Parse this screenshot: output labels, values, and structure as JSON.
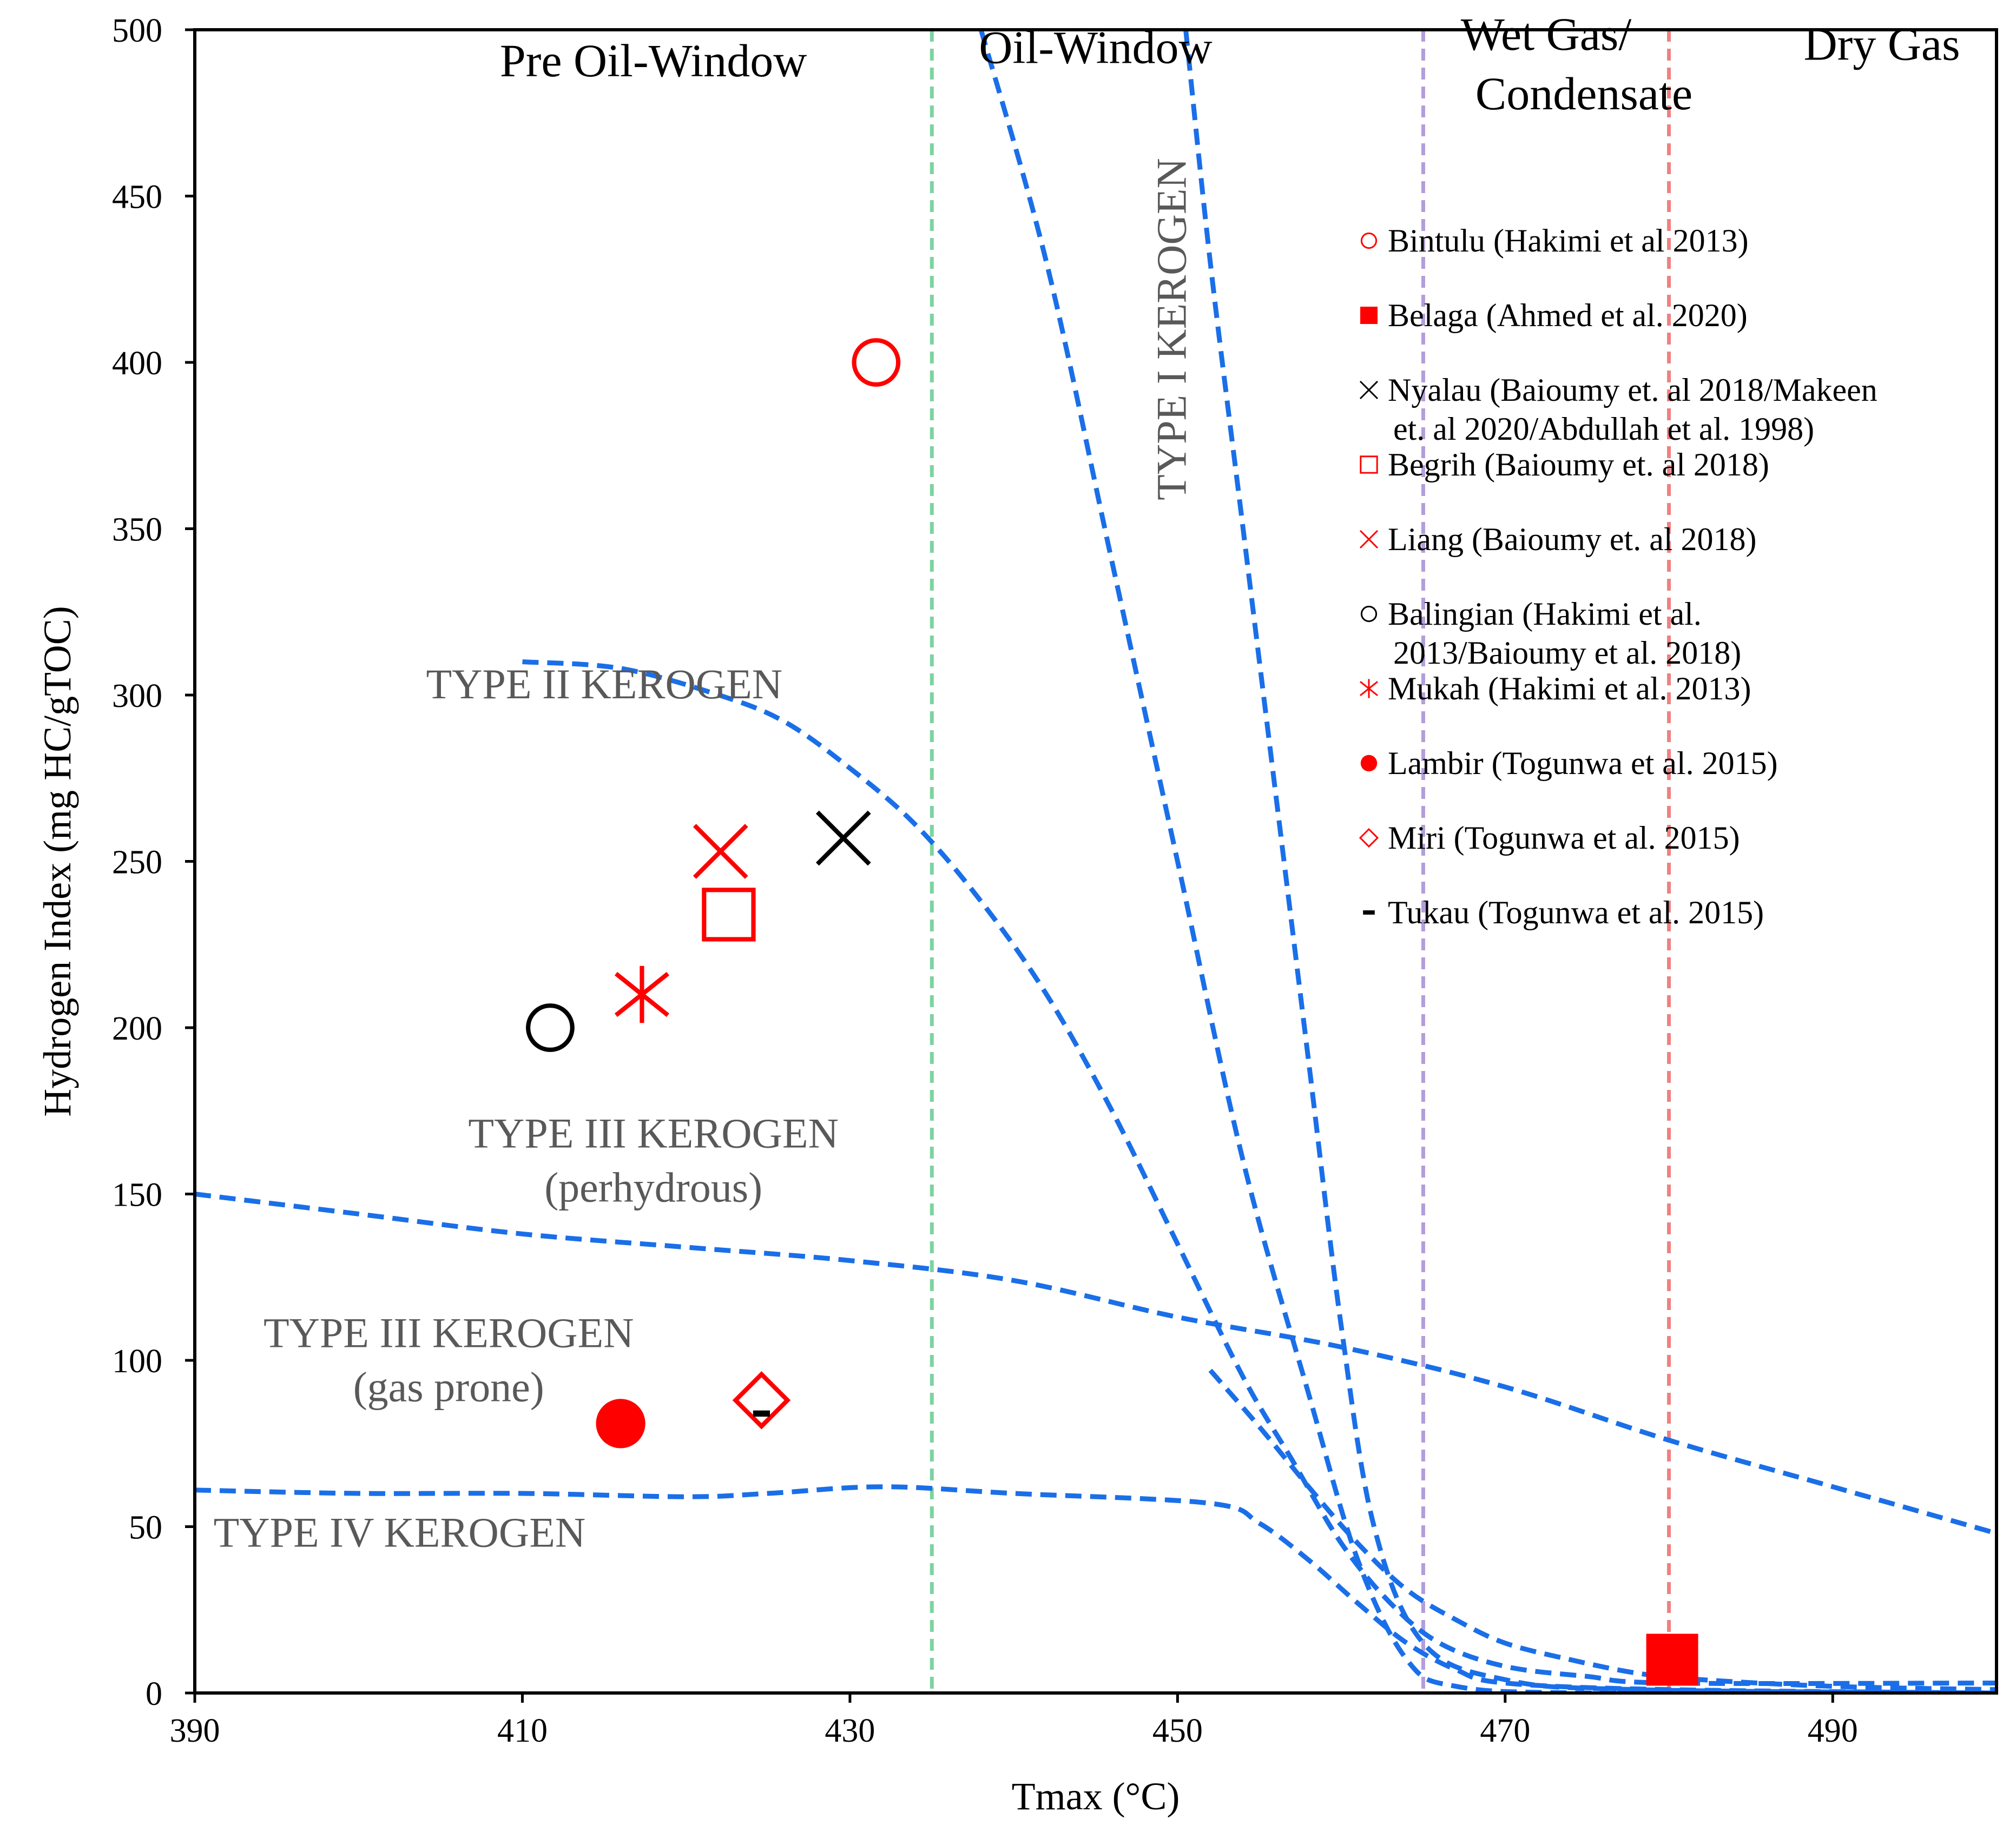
{
  "chart_data": {
    "type": "scatter",
    "xlabel": "Tmax (°C)",
    "ylabel": "Hydrogen Index (mg HC/gTOC)",
    "xlim": [
      390,
      500
    ],
    "ylim": [
      0,
      500
    ],
    "x_ticks": [
      390,
      410,
      430,
      450,
      470,
      490
    ],
    "y_ticks": [
      0,
      50,
      100,
      150,
      200,
      250,
      300,
      350,
      400,
      450,
      500
    ],
    "grid": false,
    "zones": [
      {
        "name": "pre-oil-window",
        "label": "Pre Oil-Window",
        "label_x": 418,
        "label_y": 486
      },
      {
        "name": "oil-window",
        "label": "Oil-Window",
        "label_x": 445,
        "label_y": 490
      },
      {
        "name": "wet-gas",
        "label_lines": [
          "Wet Gas/",
          "Condensate"
        ],
        "label_x": 472.5,
        "label_y": 494
      },
      {
        "name": "dry-gas",
        "label": "Dry Gas",
        "label_x": 493,
        "label_y": 491
      }
    ],
    "boundaries": [
      {
        "name": "oil-window-start",
        "x": 435,
        "color": "#7dd3a0"
      },
      {
        "name": "wet-gas-start",
        "x": 465,
        "color": "#b39ddb"
      },
      {
        "name": "dry-gas-start",
        "x": 480,
        "color": "#f08080"
      }
    ],
    "kerogen_labels": [
      {
        "name": "type-ii",
        "lines": [
          "TYPE II KEROGEN"
        ],
        "x": 415,
        "y": 299
      },
      {
        "name": "type-iii-perhydrous",
        "lines": [
          "TYPE III KEROGEN",
          "(perhydrous)"
        ],
        "x": 418,
        "y": 164
      },
      {
        "name": "type-iii-gas-prone",
        "lines": [
          "TYPE III KEROGEN",
          "(gas prone)"
        ],
        "x": 405.5,
        "y": 104
      },
      {
        "name": "type-iv",
        "lines": [
          "TYPE IV KEROGEN"
        ],
        "x": 402.5,
        "y": 44
      },
      {
        "name": "type-i",
        "lines": [
          "TYPE I KEROGEN"
        ],
        "x": 450.5,
        "y": 410,
        "rotate": -90
      }
    ],
    "curves": [
      {
        "name": "type-i-a",
        "color": "#1a6fe8",
        "points": [
          [
            438,
            500
          ],
          [
            442,
            430
          ],
          [
            446,
            340
          ],
          [
            450,
            250
          ],
          [
            454,
            160
          ],
          [
            458,
            90
          ],
          [
            461,
            40
          ],
          [
            464,
            10
          ],
          [
            467,
            2
          ],
          [
            475,
            0
          ],
          [
            500,
            0
          ]
        ]
      },
      {
        "name": "type-i-b",
        "color": "#1a6fe8",
        "points": [
          [
            450.5,
            500
          ],
          [
            452,
            430
          ],
          [
            454,
            350
          ],
          [
            456,
            270
          ],
          [
            458,
            190
          ],
          [
            460,
            110
          ],
          [
            462,
            50
          ],
          [
            465,
            15
          ],
          [
            470,
            4
          ],
          [
            478,
            1
          ],
          [
            500,
            0
          ]
        ]
      },
      {
        "name": "type-ii",
        "color": "#1a6fe8",
        "points": [
          [
            410,
            310
          ],
          [
            416,
            308
          ],
          [
            422,
            300
          ],
          [
            426,
            292
          ],
          [
            430,
            278
          ],
          [
            434,
            261
          ],
          [
            438,
            238
          ],
          [
            442,
            210
          ],
          [
            446,
            175
          ],
          [
            450,
            135
          ],
          [
            454,
            95
          ],
          [
            457,
            70
          ],
          [
            460,
            45
          ],
          [
            463,
            27
          ],
          [
            466,
            15
          ],
          [
            470,
            8
          ],
          [
            475,
            5
          ],
          [
            480,
            3
          ],
          [
            500,
            3
          ]
        ]
      },
      {
        "name": "type-iii-perhydrous",
        "color": "#1a6fe8",
        "points": [
          [
            390,
            150
          ],
          [
            400,
            144
          ],
          [
            410,
            138
          ],
          [
            420,
            134
          ],
          [
            430,
            130
          ],
          [
            440,
            124
          ],
          [
            450,
            113
          ],
          [
            460,
            104
          ],
          [
            470,
            92
          ],
          [
            480,
            76
          ],
          [
            490,
            62
          ],
          [
            500,
            48
          ]
        ]
      },
      {
        "name": "type-iii-lower",
        "color": "#1a6fe8",
        "points": [
          [
            452,
            97
          ],
          [
            455,
            80
          ],
          [
            458,
            62
          ],
          [
            461,
            45
          ],
          [
            464,
            31
          ],
          [
            467,
            22
          ],
          [
            470,
            15
          ],
          [
            474,
            10
          ],
          [
            478,
            6
          ],
          [
            482,
            4
          ],
          [
            490,
            2
          ],
          [
            500,
            1
          ]
        ]
      },
      {
        "name": "type-iv",
        "color": "#1a6fe8",
        "points": [
          [
            390,
            61
          ],
          [
            400,
            60
          ],
          [
            410,
            60
          ],
          [
            420,
            59
          ],
          [
            425,
            60
          ],
          [
            432,
            62
          ],
          [
            440,
            60
          ],
          [
            452,
            57
          ],
          [
            455,
            51
          ],
          [
            458,
            40
          ],
          [
            461,
            27
          ],
          [
            464,
            15
          ],
          [
            467,
            7
          ],
          [
            470,
            3
          ],
          [
            480,
            1
          ],
          [
            500,
            0
          ]
        ]
      }
    ],
    "series": [
      {
        "name": "Bintulu (Hakimi et al 2013)",
        "marker": "circle-open",
        "color": "#ff0000",
        "points": [
          [
            431.6,
            400
          ]
        ]
      },
      {
        "name": "Belaga (Ahmed et al. 2020)",
        "marker": "square-filled",
        "color": "#ff0000",
        "points": [
          [
            480.2,
            10
          ]
        ]
      },
      {
        "name": "Nyalau (Baioumy et. al 2018/Makeen et. al 2020/Abdullah et al. 1998)",
        "marker": "x",
        "color": "#000000",
        "points": [
          [
            429.6,
            257
          ]
        ]
      },
      {
        "name": "Begrih (Baioumy et. al 2018)",
        "marker": "square-open",
        "color": "#ff0000",
        "points": [
          [
            422.6,
            234
          ]
        ]
      },
      {
        "name": "Liang (Baioumy et. al 2018)",
        "marker": "x",
        "color": "#ff0000",
        "points": [
          [
            422.1,
            253
          ]
        ]
      },
      {
        "name": "Balingian (Hakimi et al. 2013/Baioumy et al. 2018)",
        "marker": "circle-open",
        "color": "#000000",
        "points": [
          [
            411.7,
            200
          ]
        ]
      },
      {
        "name": "Mukah (Hakimi et al. 2013)",
        "marker": "asterisk",
        "color": "#ff0000",
        "points": [
          [
            417.3,
            210
          ]
        ]
      },
      {
        "name": "Lambir (Togunwa et al. 2015)",
        "marker": "circle-filled",
        "color": "#ff0000",
        "points": [
          [
            416.0,
            81
          ]
        ]
      },
      {
        "name": "Miri (Togunwa et al. 2015)",
        "marker": "diamond-open",
        "color": "#ff0000",
        "points": [
          [
            424.6,
            88
          ]
        ]
      },
      {
        "name": "Tukau (Togunwa et al. 2015)",
        "marker": "dash",
        "color": "#000000",
        "points": [
          [
            424.6,
            84
          ]
        ]
      }
    ],
    "legend": {
      "position": "right",
      "entries": [
        {
          "marker": "circle-open",
          "color": "#ff0000",
          "lines": [
            "Bintulu (Hakimi et al 2013)"
          ]
        },
        {
          "marker": "square-filled",
          "color": "#ff0000",
          "lines": [
            "Belaga (Ahmed et al. 2020)"
          ]
        },
        {
          "marker": "x",
          "color": "#000000",
          "lines": [
            "Nyalau (Baioumy et. al 2018/Makeen",
            "et. al 2020/Abdullah et al. 1998)"
          ]
        },
        {
          "marker": "square-open",
          "color": "#ff0000",
          "lines": [
            "Begrih (Baioumy et. al 2018)"
          ]
        },
        {
          "marker": "x",
          "color": "#ff0000",
          "lines": [
            "Liang (Baioumy et. al 2018)"
          ]
        },
        {
          "marker": "circle-open",
          "color": "#000000",
          "lines": [
            "Balingian (Hakimi et al.",
            "2013/Baioumy et al. 2018)"
          ]
        },
        {
          "marker": "asterisk",
          "color": "#ff0000",
          "lines": [
            "Mukah (Hakimi et al. 2013)"
          ]
        },
        {
          "marker": "circle-filled",
          "color": "#ff0000",
          "lines": [
            "Lambir (Togunwa et al. 2015)"
          ]
        },
        {
          "marker": "diamond-open",
          "color": "#ff0000",
          "lines": [
            "Miri (Togunwa et al. 2015)"
          ]
        },
        {
          "marker": "dash",
          "color": "#000000",
          "lines": [
            "Tukau (Togunwa et al. 2015)"
          ]
        }
      ]
    }
  }
}
